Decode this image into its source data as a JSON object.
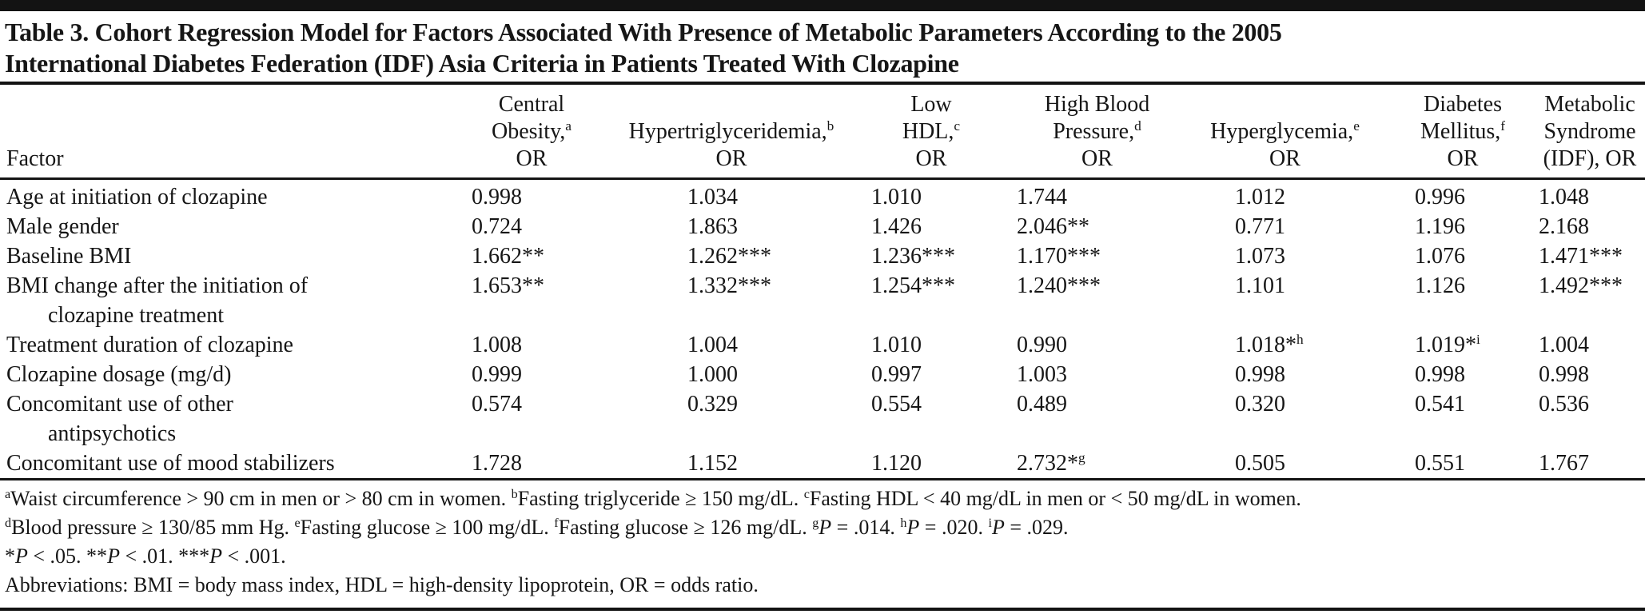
{
  "page": {
    "background": "#ffffff",
    "text_color": "#161616",
    "rule_color": "#131313"
  },
  "title_lines": [
    "Table 3. Cohort Regression Model for Factors Associated With Presence of Metabolic Parameters According to the 2005",
    "International Diabetes Federation (IDF) Asia Criteria in Patients Treated With Clozapine"
  ],
  "table": {
    "factor_header": "Factor",
    "columns": [
      {
        "key": "central-obesity",
        "lines": [
          {
            "t": "Central"
          },
          {
            "t": "Obesity,",
            "sup": "a"
          },
          {
            "t": "OR"
          }
        ]
      },
      {
        "key": "hypertriglyceridemia",
        "lines": [
          {
            "t": "Hypertriglyceridemia,",
            "sup": "b"
          },
          {
            "t": "OR"
          }
        ]
      },
      {
        "key": "low-hdl",
        "lines": [
          {
            "t": "Low"
          },
          {
            "t": "HDL,",
            "sup": "c"
          },
          {
            "t": "OR"
          }
        ]
      },
      {
        "key": "high-blood-pressure",
        "lines": [
          {
            "t": "High Blood"
          },
          {
            "t": "Pressure,",
            "sup": "d"
          },
          {
            "t": "OR"
          }
        ]
      },
      {
        "key": "hyperglycemia",
        "lines": [
          {
            "t": "Hyperglycemia,",
            "sup": "e"
          },
          {
            "t": "OR"
          }
        ]
      },
      {
        "key": "diabetes-mellitus",
        "lines": [
          {
            "t": "Diabetes"
          },
          {
            "t": "Mellitus,",
            "sup": "f"
          },
          {
            "t": "OR"
          }
        ]
      },
      {
        "key": "metabolic-syndrome",
        "lines": [
          {
            "t": "Metabolic"
          },
          {
            "t": "Syndrome"
          },
          {
            "t": "(IDF), OR"
          }
        ]
      }
    ],
    "rows": [
      {
        "factor": [
          "Age at initiation of clozapine"
        ],
        "values": [
          "0.998",
          "1.034",
          "1.010",
          "1.744",
          "1.012",
          "0.996",
          "1.048"
        ]
      },
      {
        "factor": [
          "Male gender"
        ],
        "values": [
          "0.724",
          "1.863",
          "1.426",
          "2.046**",
          "0.771",
          "1.196",
          "2.168"
        ]
      },
      {
        "factor": [
          "Baseline BMI"
        ],
        "values": [
          "1.662**",
          "1.262***",
          "1.236***",
          "1.170***",
          "1.073",
          "1.076",
          "1.471***"
        ]
      },
      {
        "factor": [
          "BMI change after the initiation of",
          "clozapine treatment"
        ],
        "values": [
          "1.653**",
          "1.332***",
          "1.254***",
          "1.240***",
          "1.101",
          "1.126",
          "1.492***"
        ]
      },
      {
        "factor": [
          "Treatment duration of clozapine"
        ],
        "values": [
          "1.008",
          "1.004",
          "1.010",
          "0.990",
          "1.018*^h",
          "1.019*^i",
          "1.004"
        ]
      },
      {
        "factor": [
          "Clozapine dosage (mg/d)"
        ],
        "values": [
          "0.999",
          "1.000",
          "0.997",
          "1.003",
          "0.998",
          "0.998",
          "0.998"
        ]
      },
      {
        "factor": [
          "Concomitant use of other",
          "antipsychotics"
        ],
        "values": [
          "0.574",
          "0.329",
          "0.554",
          "0.489",
          "0.320",
          "0.541",
          "0.536"
        ]
      },
      {
        "factor": [
          "Concomitant use of mood stabilizers"
        ],
        "values": [
          "1.728",
          "1.152",
          "1.120",
          "2.732*^g",
          "0.505",
          "0.551",
          "1.767"
        ]
      }
    ]
  },
  "footnotes": [
    [
      {
        "s": "a"
      },
      {
        "t": "Waist circumference > 90 cm in men or > 80 cm in women. "
      },
      {
        "s": "b"
      },
      {
        "t": "Fasting triglyceride ≥ 150 mg/dL. "
      },
      {
        "s": "c"
      },
      {
        "t": "Fasting HDL < 40 mg/dL in men or < 50 mg/dL in women."
      }
    ],
    [
      {
        "s": "d"
      },
      {
        "t": "Blood pressure ≥ 130/85 mm Hg. "
      },
      {
        "s": "e"
      },
      {
        "t": "Fasting glucose ≥ 100 mg/dL. "
      },
      {
        "s": "f"
      },
      {
        "t": "Fasting glucose ≥ 126 mg/dL. "
      },
      {
        "s": "g"
      },
      {
        "i": "P"
      },
      {
        "t": " = .014. "
      },
      {
        "s": "h"
      },
      {
        "i": "P"
      },
      {
        "t": " = .020. "
      },
      {
        "s": "i"
      },
      {
        "i": "P"
      },
      {
        "t": " = .029."
      }
    ],
    [
      {
        "t": "*"
      },
      {
        "i": "P"
      },
      {
        "t": " < .05. **"
      },
      {
        "i": "P"
      },
      {
        "t": " < .01. ***"
      },
      {
        "i": "P"
      },
      {
        "t": " < .001."
      }
    ],
    [
      {
        "t": "Abbreviations: BMI = body mass index, HDL = high-density lipoprotein, OR = odds ratio."
      }
    ]
  ]
}
